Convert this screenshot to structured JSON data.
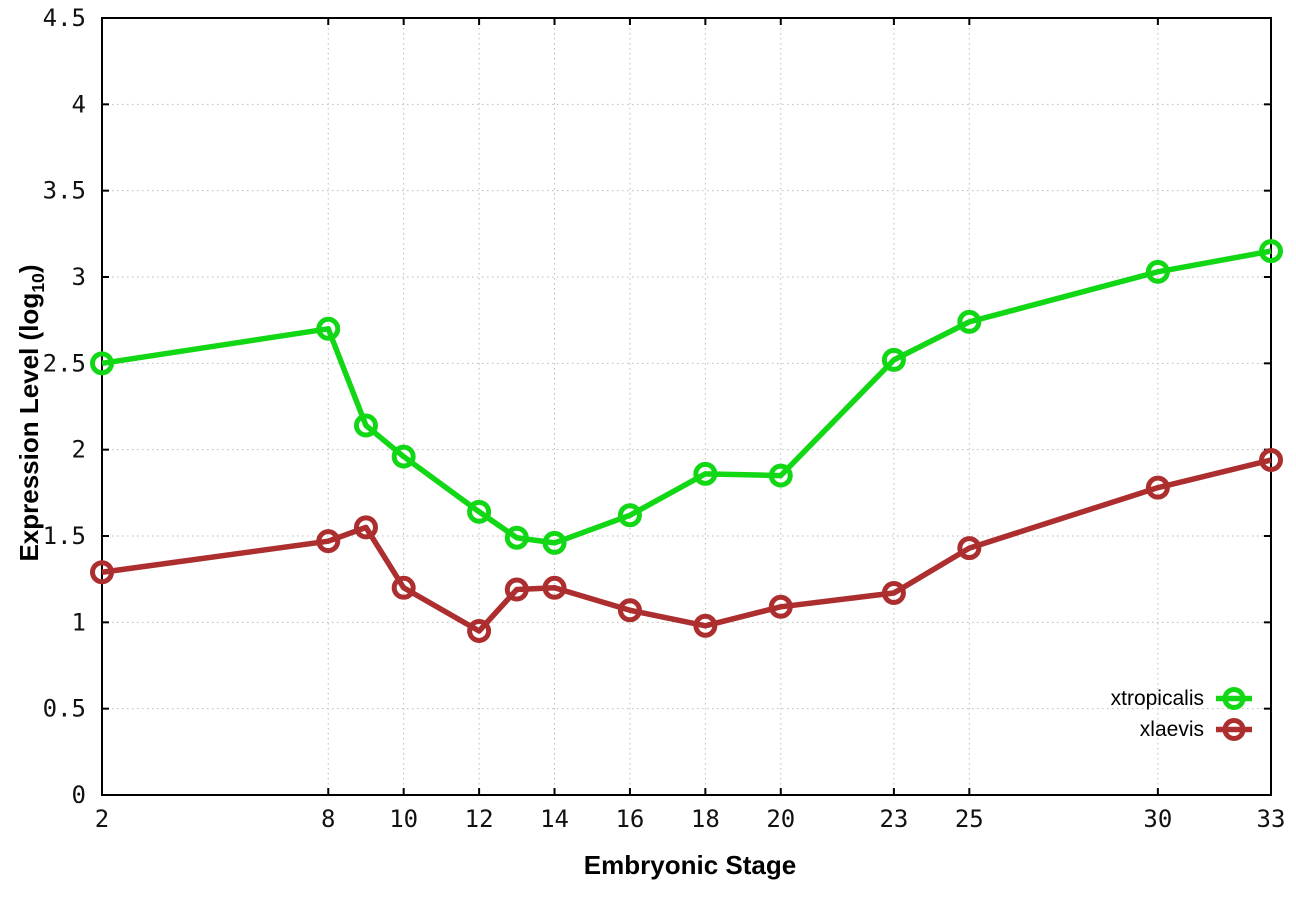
{
  "chart_data": {
    "type": "line",
    "title": "",
    "xlabel": "Embryonic Stage",
    "ylabel_prefix": "Expression Level (log",
    "ylabel_sub": "10",
    "ylabel_suffix": ")",
    "xlim": [
      2,
      33
    ],
    "ylim": [
      0,
      4.5
    ],
    "x_ticks": [
      2,
      8,
      10,
      12,
      14,
      16,
      18,
      20,
      23,
      25,
      30,
      33
    ],
    "y_ticks": [
      0,
      0.5,
      1,
      1.5,
      2,
      2.5,
      3,
      3.5,
      4,
      4.5
    ],
    "grid": true,
    "legend_position": "bottom-right",
    "x": [
      2,
      8,
      9,
      10,
      12,
      13,
      14,
      16,
      18,
      20,
      23,
      25,
      30,
      33
    ],
    "series": [
      {
        "name": "xtropicalis",
        "color": "#12d715",
        "marker": "open-circle",
        "values": [
          2.5,
          2.7,
          2.14,
          1.96,
          1.64,
          1.49,
          1.46,
          1.62,
          1.86,
          1.85,
          2.52,
          2.74,
          3.03,
          3.15
        ]
      },
      {
        "name": "xlaevis",
        "color": "#ad2e2e",
        "marker": "open-circle",
        "values": [
          1.29,
          1.47,
          1.55,
          1.2,
          0.95,
          1.19,
          1.2,
          1.07,
          0.98,
          1.09,
          1.17,
          1.43,
          1.78,
          1.94
        ]
      }
    ],
    "style": {
      "grid_color": "#bbbbbb",
      "axis_color": "#000000",
      "tick_label_color": "#111111"
    }
  }
}
